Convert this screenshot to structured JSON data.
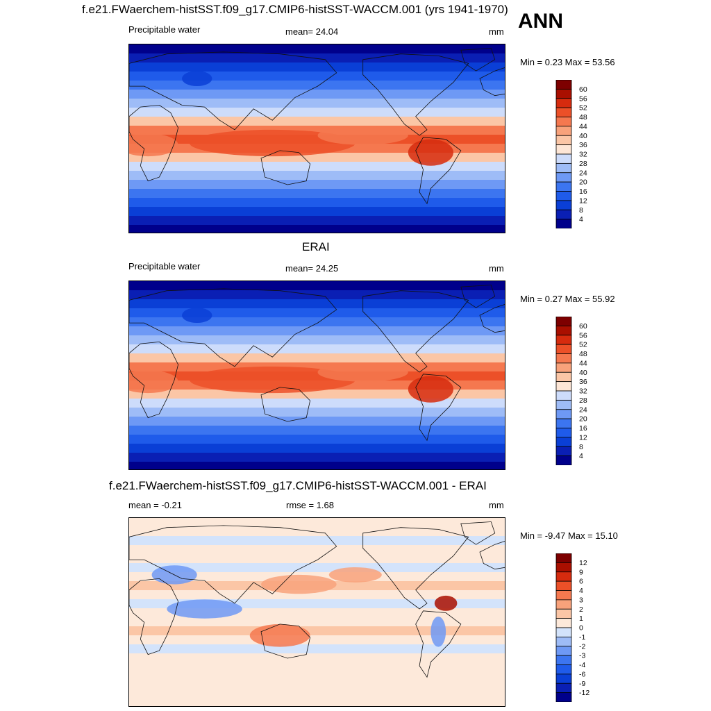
{
  "header": {
    "title": "f.e21.FWaerchem-histSST.f09_g17.CMIP6-histSST-WACCM.001 (yrs 1941-1970)",
    "season": "ANN"
  },
  "panels": [
    {
      "title": "",
      "left_label": "Precipitable water",
      "center_label": "mean=  24.04",
      "unit": "mm",
      "minmax": "Min =   0.23 Max =  53.56",
      "levels": [
        "60",
        "56",
        "52",
        "48",
        "44",
        "40",
        "36",
        "32",
        "28",
        "24",
        "20",
        "16",
        "12",
        "8",
        "4"
      ]
    },
    {
      "title": "ERAI",
      "left_label": "Precipitable water",
      "center_label": "mean=  24.25",
      "unit": "mm",
      "minmax": "Min =   0.27 Max =  55.92",
      "levels": [
        "60",
        "56",
        "52",
        "48",
        "44",
        "40",
        "36",
        "32",
        "28",
        "24",
        "20",
        "16",
        "12",
        "8",
        "4"
      ]
    },
    {
      "title": "f.e21.FWaerchem-histSST.f09_g17.CMIP6-histSST-WACCM.001 - ERAI",
      "left_label": "mean =  -0.21",
      "center_label": "rmse =    1.68",
      "unit": "mm",
      "minmax": "Min =  -9.47 Max =  15.10",
      "levels": [
        "12",
        "9",
        "6",
        "4",
        "3",
        "2",
        "1",
        "0",
        "-1",
        "-2",
        "-3",
        "-4",
        "-6",
        "-9",
        "-12"
      ]
    }
  ],
  "chart_data": [
    {
      "type": "heatmap",
      "title": "",
      "variable": "Precipitable water",
      "unit": "mm",
      "mean": 24.04,
      "min": 0.23,
      "max": 53.56,
      "contour_levels": [
        4,
        8,
        12,
        16,
        20,
        24,
        28,
        32,
        36,
        40,
        44,
        48,
        52,
        56,
        60
      ],
      "colors": [
        "#00008b",
        "#0a1fb4",
        "#0a3fd6",
        "#1f5bea",
        "#3c75f0",
        "#6e99f5",
        "#9ebcf7",
        "#cddcfb",
        "#fde6d6",
        "#fbc6a6",
        "#f8a27b",
        "#f5784f",
        "#ec5028",
        "#d62b0e",
        "#a90f00",
        "#7d0000"
      ]
    },
    {
      "type": "heatmap",
      "title": "ERAI",
      "variable": "Precipitable water",
      "unit": "mm",
      "mean": 24.25,
      "min": 0.27,
      "max": 55.92,
      "contour_levels": [
        4,
        8,
        12,
        16,
        20,
        24,
        28,
        32,
        36,
        40,
        44,
        48,
        52,
        56,
        60
      ],
      "colors": [
        "#00008b",
        "#0a1fb4",
        "#0a3fd6",
        "#1f5bea",
        "#3c75f0",
        "#6e99f5",
        "#9ebcf7",
        "#cddcfb",
        "#fde6d6",
        "#fbc6a6",
        "#f8a27b",
        "#f5784f",
        "#ec5028",
        "#d62b0e",
        "#a90f00",
        "#7d0000"
      ]
    },
    {
      "type": "heatmap",
      "title": "f.e21.FWaerchem-histSST.f09_g17.CMIP6-histSST-WACCM.001 - ERAI",
      "unit": "mm",
      "mean": -0.21,
      "rmse": 1.68,
      "min": -9.47,
      "max": 15.1,
      "contour_levels": [
        -12,
        -9,
        -6,
        -4,
        -3,
        -2,
        -1,
        0,
        1,
        2,
        3,
        4,
        6,
        9,
        12
      ],
      "colors": [
        "#00008b",
        "#0a1fb4",
        "#0a3fd6",
        "#1f5bea",
        "#3c75f0",
        "#6e99f5",
        "#9ebcf7",
        "#d3e3fb",
        "#fde9da",
        "#fbc6a6",
        "#f8a27b",
        "#f5784f",
        "#ec5028",
        "#d62b0e",
        "#a90f00",
        "#7d0000"
      ]
    }
  ]
}
